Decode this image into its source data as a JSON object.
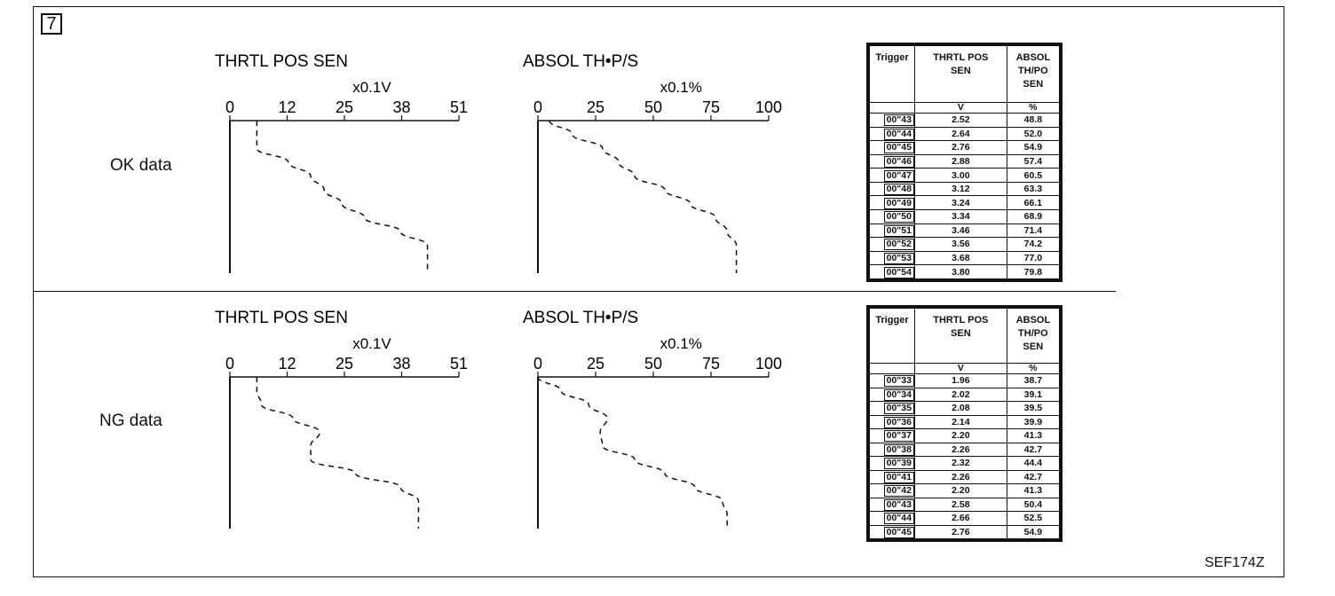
{
  "step_number": "7",
  "figure_code": "SEF174Z",
  "panels": [
    {
      "id": "ok",
      "row_label": "OK data",
      "graphs": [
        {
          "id": "thrtl",
          "title": "THRTL POS SEN",
          "unit": "x0.1V",
          "ticks": [
            "0",
            "12",
            "25",
            "38",
            "51"
          ],
          "max": 51,
          "values": [
            6,
            6,
            6,
            13,
            18,
            21,
            25,
            30,
            38,
            44,
            44,
            44
          ]
        },
        {
          "id": "absol",
          "title": "ABSOL TH•P/S",
          "unit": "x0.1%",
          "ticks": [
            "0",
            "25",
            "50",
            "75",
            "100"
          ],
          "max": 100,
          "values": [
            5,
            15,
            28,
            35,
            42,
            55,
            66,
            77,
            82,
            86,
            86,
            86
          ]
        }
      ],
      "table": {
        "headers": [
          "Trigger",
          "THRTL POS SEN",
          "ABSOL TH/PO SEN"
        ],
        "units": [
          "",
          "V",
          "%"
        ],
        "rows": [
          [
            "00\"43",
            "2.52",
            "48.8"
          ],
          [
            "00\"44",
            "2.64",
            "52.0"
          ],
          [
            "00\"45",
            "2.76",
            "54.9"
          ],
          [
            "00\"46",
            "2.88",
            "57.4"
          ],
          [
            "00\"47",
            "3.00",
            "60.5"
          ],
          [
            "00\"48",
            "3.12",
            "63.3"
          ],
          [
            "00\"49",
            "3.24",
            "66.1"
          ],
          [
            "00\"50",
            "3.34",
            "68.9"
          ],
          [
            "00\"51",
            "3.46",
            "71.4"
          ],
          [
            "00\"52",
            "3.56",
            "74.2"
          ],
          [
            "00\"53",
            "3.68",
            "77.0"
          ],
          [
            "00\"54",
            "3.80",
            "79.8"
          ]
        ]
      }
    },
    {
      "id": "ng",
      "row_label": "NG data",
      "graphs": [
        {
          "id": "thrtl",
          "title": "THRTL POS SEN",
          "unit": "x0.1V",
          "ticks": [
            "0",
            "12",
            "25",
            "38",
            "51"
          ],
          "max": 51,
          "values": [
            6,
            6,
            7,
            14,
            20,
            18,
            18,
            28,
            38,
            42,
            42,
            42
          ]
        },
        {
          "id": "absol",
          "title": "ABSOL TH•P/S",
          "unit": "x0.1%",
          "ticks": [
            "0",
            "25",
            "50",
            "75",
            "100"
          ],
          "max": 100,
          "values": [
            0,
            10,
            22,
            30,
            27,
            28,
            42,
            55,
            68,
            80,
            82,
            82
          ]
        }
      ],
      "table": {
        "headers": [
          "Trigger",
          "THRTL POS SEN",
          "ABSOL TH/PO SEN"
        ],
        "units": [
          "",
          "V",
          "%"
        ],
        "rows": [
          [
            "00\"33",
            "1.96",
            "38.7"
          ],
          [
            "00\"34",
            "2.02",
            "39.1"
          ],
          [
            "00\"35",
            "2.08",
            "39.5"
          ],
          [
            "00\"36",
            "2.14",
            "39.9"
          ],
          [
            "00\"37",
            "2.20",
            "41.3"
          ],
          [
            "00\"38",
            "2.26",
            "42.7"
          ],
          [
            "00\"39",
            "2.32",
            "44.4"
          ],
          [
            "00\"41",
            "2.26",
            "42.7"
          ],
          [
            "00\"42",
            "2.20",
            "41.3"
          ],
          [
            "00\"43",
            "2.58",
            "50.4"
          ],
          [
            "00\"44",
            "2.66",
            "52.5"
          ],
          [
            "00\"45",
            "2.76",
            "54.9"
          ]
        ]
      }
    }
  ]
}
